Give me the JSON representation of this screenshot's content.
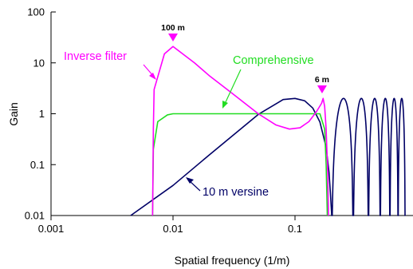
{
  "chart_data": {
    "type": "line",
    "xlabel": "Spatial frequency (1/m)",
    "ylabel": "Gain",
    "x_scale": "log",
    "y_scale": "log",
    "xlim": [
      0.001,
      0.8
    ],
    "ylim": [
      0.01,
      100
    ],
    "x_ticks": [
      {
        "value": 0.001,
        "label": "0.001"
      },
      {
        "value": 0.01,
        "label": "0.01"
      },
      {
        "value": 0.1,
        "label": "0.1"
      }
    ],
    "y_ticks": [
      {
        "value": 0.01,
        "label": "0.01"
      },
      {
        "value": 0.1,
        "label": "0.1"
      },
      {
        "value": 1,
        "label": "1"
      },
      {
        "value": 10,
        "label": "10"
      },
      {
        "value": 100,
        "label": "100"
      }
    ],
    "grid": false,
    "legend": "none",
    "series": [
      {
        "name": "Inverse filter",
        "color": "#ff00ff",
        "points": [
          [
            0.0068,
            0.01
          ],
          [
            0.0069,
            0.5
          ],
          [
            0.007,
            3
          ],
          [
            0.0085,
            15
          ],
          [
            0.01,
            21
          ],
          [
            0.015,
            10
          ],
          [
            0.02,
            5.5
          ],
          [
            0.03,
            2.6
          ],
          [
            0.05,
            1.0
          ],
          [
            0.07,
            0.6
          ],
          [
            0.09,
            0.5
          ],
          [
            0.11,
            0.53
          ],
          [
            0.13,
            0.7
          ],
          [
            0.15,
            1.1
          ],
          [
            0.165,
            1.6
          ],
          [
            0.17,
            2.0
          ],
          [
            0.175,
            1.4
          ],
          [
            0.18,
            0.5
          ],
          [
            0.185,
            0.08
          ],
          [
            0.188,
            0.01
          ]
        ]
      },
      {
        "name": "Comprehensive",
        "color": "#22dd22",
        "points": [
          [
            0.0068,
            0.01
          ],
          [
            0.0069,
            0.2
          ],
          [
            0.0075,
            0.7
          ],
          [
            0.009,
            0.95
          ],
          [
            0.01,
            1.0
          ],
          [
            0.03,
            1.0
          ],
          [
            0.05,
            1.0
          ],
          [
            0.1,
            1.0
          ],
          [
            0.16,
            1.0
          ],
          [
            0.175,
            0.5
          ],
          [
            0.18,
            0.1
          ],
          [
            0.184,
            0.01
          ]
        ]
      },
      {
        "name": "10 m versine",
        "color": "#000066",
        "points": [
          [
            0.0045,
            0.01
          ],
          [
            0.01,
            0.039
          ],
          [
            0.02,
            0.158
          ],
          [
            0.05,
            0.97
          ],
          [
            0.08,
            1.9
          ],
          [
            0.1,
            2.0
          ],
          [
            0.12,
            1.8
          ],
          [
            0.14,
            1.29
          ],
          [
            0.16,
            0.69
          ],
          [
            0.18,
            0.22
          ],
          [
            0.19,
            0.071
          ],
          [
            0.195,
            0.028
          ],
          [
            0.2,
            0.01
          ]
        ]
      }
    ],
    "annotations": [
      {
        "text": "Inverse filter",
        "color": "#ff00ff"
      },
      {
        "text": "Comprehensive",
        "color": "#22dd22"
      },
      {
        "text": "10 m versine",
        "color": "#000066"
      },
      {
        "text": "100 m",
        "marker": "triangle-down",
        "color": "#ff00ff",
        "x": 0.01
      },
      {
        "text": "6 m",
        "marker": "triangle-down",
        "color": "#ff00ff",
        "x": 0.1667
      }
    ]
  }
}
